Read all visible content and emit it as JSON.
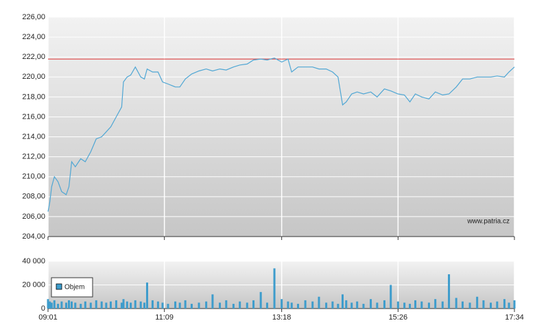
{
  "chart_data": [
    {
      "type": "line",
      "color": "#4ea6d4",
      "x": [
        "09:01",
        "09:03",
        "09:05",
        "09:08",
        "09:12",
        "09:16",
        "09:21",
        "09:24",
        "09:27",
        "09:31",
        "09:37",
        "09:42",
        "09:48",
        "09:54",
        "10:00",
        "10:05",
        "10:10",
        "10:16",
        "10:22",
        "10:24",
        "10:28",
        "10:32",
        "10:37",
        "10:43",
        "10:47",
        "10:50",
        "10:56",
        "11:02",
        "11:07",
        "11:13",
        "11:21",
        "11:26",
        "11:32",
        "11:39",
        "11:47",
        "11:55",
        "12:02",
        "12:10",
        "12:17",
        "12:25",
        "12:32",
        "12:40",
        "12:47",
        "12:55",
        "13:02",
        "13:10",
        "13:18",
        "13:25",
        "13:29",
        "13:36",
        "13:44",
        "13:52",
        "13:59",
        "14:07",
        "14:14",
        "14:20",
        "14:25",
        "14:29",
        "14:35",
        "14:41",
        "14:48",
        "14:56",
        "15:03",
        "15:11",
        "15:18",
        "15:26",
        "15:33",
        "15:39",
        "15:45",
        "15:52",
        "16:00",
        "16:07",
        "16:15",
        "16:22",
        "16:30",
        "16:37",
        "16:45",
        "16:53",
        "17:00",
        "17:08",
        "17:15",
        "17:23",
        "17:28",
        "17:34"
      ],
      "values": [
        206.5,
        207.5,
        209,
        210,
        209.5,
        208.5,
        208.2,
        209,
        211.5,
        211,
        211.8,
        211.5,
        212.5,
        213.8,
        214,
        214.5,
        215,
        216,
        217,
        219.5,
        220,
        220.2,
        221,
        220,
        219.8,
        220.8,
        220.5,
        220.5,
        219.5,
        219.3,
        219,
        219,
        219.8,
        220.3,
        220.6,
        220.8,
        220.6,
        220.8,
        220.7,
        221,
        221.2,
        221.3,
        221.7,
        221.8,
        221.7,
        221.9,
        221.5,
        221.8,
        220.5,
        221,
        221,
        221,
        220.8,
        220.8,
        220.5,
        220,
        217.2,
        217.5,
        218.3,
        218.5,
        218.3,
        218.5,
        218,
        218.8,
        218.6,
        218.3,
        218.2,
        217.5,
        218.3,
        218,
        217.8,
        218.5,
        218.2,
        218.3,
        219,
        219.8,
        219.8,
        220,
        220,
        220,
        220.1,
        220,
        220.5,
        221
      ],
      "ylim": [
        204,
        226
      ],
      "yticks": [
        {
          "value": 204,
          "label": "204,00"
        },
        {
          "value": 206,
          "label": "206,00"
        },
        {
          "value": 208,
          "label": "208,00"
        },
        {
          "value": 210,
          "label": "210,00"
        },
        {
          "value": 212,
          "label": "212,00"
        },
        {
          "value": 214,
          "label": "214,00"
        },
        {
          "value": 216,
          "label": "216,00"
        },
        {
          "value": 218,
          "label": "218,00"
        },
        {
          "value": 220,
          "label": "220,00"
        },
        {
          "value": 222,
          "label": "222,00"
        },
        {
          "value": 224,
          "label": "224,00"
        },
        {
          "value": 226,
          "label": "226,00"
        }
      ],
      "reference_line": 221.8,
      "reference_color": "#e03030",
      "annotation": "www.patria.cz",
      "grid": true
    },
    {
      "type": "bar",
      "x": [
        "09:01",
        "09:03",
        "09:05",
        "09:08",
        "09:12",
        "09:16",
        "09:21",
        "09:24",
        "09:27",
        "09:31",
        "09:37",
        "09:42",
        "09:48",
        "09:54",
        "10:00",
        "10:05",
        "10:10",
        "10:16",
        "10:22",
        "10:24",
        "10:28",
        "10:32",
        "10:37",
        "10:43",
        "10:47",
        "10:50",
        "10:56",
        "11:02",
        "11:07",
        "11:13",
        "11:21",
        "11:26",
        "11:32",
        "11:39",
        "11:47",
        "11:55",
        "12:02",
        "12:10",
        "12:17",
        "12:25",
        "12:32",
        "12:40",
        "12:47",
        "12:55",
        "13:02",
        "13:10",
        "13:18",
        "13:25",
        "13:29",
        "13:36",
        "13:44",
        "13:52",
        "13:59",
        "14:07",
        "14:14",
        "14:20",
        "14:25",
        "14:29",
        "14:35",
        "14:41",
        "14:48",
        "14:56",
        "15:03",
        "15:11",
        "15:18",
        "15:26",
        "15:33",
        "15:39",
        "15:45",
        "15:52",
        "16:00",
        "16:07",
        "16:15",
        "16:22",
        "16:30",
        "16:37",
        "16:45",
        "16:53",
        "17:00",
        "17:08",
        "17:15",
        "17:23",
        "17:28",
        "17:34"
      ],
      "series": [
        {
          "name": "Objem",
          "color": "#3d9ccc",
          "values": [
            8000,
            6000,
            5000,
            7000,
            4000,
            6000,
            5000,
            7000,
            6000,
            5000,
            4000,
            6000,
            5000,
            7000,
            6000,
            5000,
            6000,
            7000,
            5000,
            8000,
            6000,
            5000,
            7000,
            6000,
            5000,
            22000,
            7000,
            6000,
            5000,
            4000,
            6000,
            5000,
            7000,
            4000,
            5000,
            6000,
            12000,
            5000,
            7000,
            4000,
            6000,
            5000,
            7000,
            14000,
            5000,
            34000,
            8000,
            6000,
            5000,
            4000,
            7000,
            6000,
            10000,
            5000,
            6000,
            4000,
            12000,
            7000,
            5000,
            6000,
            4000,
            8000,
            5000,
            7000,
            20000,
            6000,
            5000,
            4000,
            7000,
            6000,
            5000,
            8000,
            6000,
            29000,
            9000,
            6000,
            5000,
            10000,
            7000,
            5000,
            6000,
            8000,
            5000,
            7000
          ]
        }
      ],
      "ylim": [
        0,
        40000
      ],
      "yticks": [
        0,
        {
          "value": 20000,
          "label": "20 000"
        },
        {
          "value": 40000,
          "label": "40 000"
        }
      ],
      "xlim": [
        "09:01",
        "17:34"
      ],
      "xticks": [
        "09:01",
        "11:09",
        "13:18",
        "15:26",
        "17:34"
      ],
      "grid": true
    }
  ]
}
